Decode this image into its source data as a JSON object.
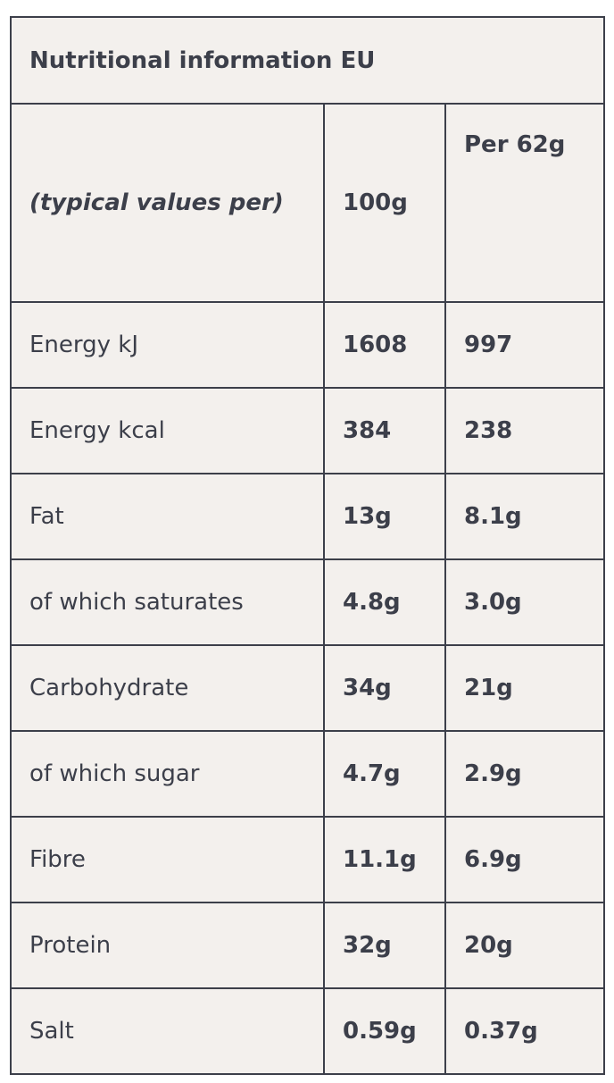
{
  "header": {
    "title": "Nutritional information EU"
  },
  "table": {
    "columns": [
      "(typical values per)",
      "100g",
      "Per 62g"
    ],
    "rows": [
      [
        "Energy kJ",
        "1608",
        "997"
      ],
      [
        "Energy kcal",
        "384",
        "238"
      ],
      [
        "Fat",
        "13g",
        "8.1g"
      ],
      [
        "of which saturates",
        "4.8g",
        "3.0g"
      ],
      [
        "Carbohydrate",
        "34g",
        "21g"
      ],
      [
        "of which sugar",
        "4.7g",
        "2.9g"
      ],
      [
        "Fibre",
        "11.1g",
        "6.9g"
      ],
      [
        "Protein",
        "32g",
        "20g"
      ],
      [
        "Salt",
        "0.59g",
        "0.37g"
      ]
    ]
  }
}
